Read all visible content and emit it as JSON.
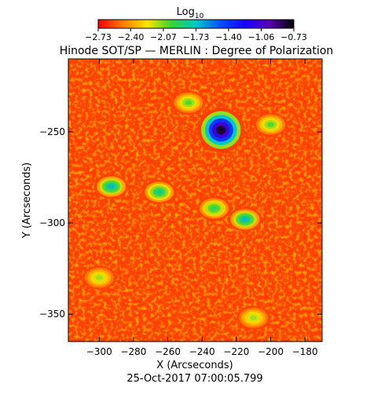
{
  "chart_data": {
    "type": "heatmap",
    "title": "Hinode SOT/SP — MERLIN : Degree of Polarization",
    "xlabel": "X (Arcseconds)",
    "ylabel": "Y (Arcseconds)",
    "xlim": [
      -318,
      -170
    ],
    "ylim": [
      -365,
      -210
    ],
    "x_ticks": [
      -300,
      -280,
      -260,
      -240,
      -220,
      -200,
      -180
    ],
    "y_ticks": [
      -250,
      -300,
      -350
    ],
    "colorbar": {
      "label": "Log",
      "label_subscript": "10",
      "range": [
        -2.73,
        -0.73
      ],
      "ticks": [
        "−2.73",
        "−2.40",
        "−2.07",
        "−1.73",
        "−1.40",
        "−1.06",
        "−0.73"
      ],
      "stops": [
        "#ff0000",
        "#ff7a00",
        "#ffe600",
        "#33d633",
        "#00c8c8",
        "#0050ff",
        "#1a00ff",
        "#5a00b4",
        "#000000"
      ]
    },
    "background_level": -2.6,
    "features": [
      {
        "kind": "sunspot",
        "x": -229,
        "y": -249,
        "peak_value": -0.8
      },
      {
        "kind": "plage",
        "x": -293,
        "y": -280,
        "peak_value": -1.7
      },
      {
        "kind": "plage",
        "x": -265,
        "y": -283,
        "peak_value": -1.8
      },
      {
        "kind": "plage",
        "x": -233,
        "y": -292,
        "peak_value": -1.9
      },
      {
        "kind": "plage",
        "x": -215,
        "y": -298,
        "peak_value": -1.7
      },
      {
        "kind": "plage",
        "x": -248,
        "y": -234,
        "peak_value": -2.0
      },
      {
        "kind": "plage",
        "x": -200,
        "y": -246,
        "peak_value": -2.0
      },
      {
        "kind": "plage",
        "x": -300,
        "y": -330,
        "peak_value": -2.1
      },
      {
        "kind": "plage",
        "x": -210,
        "y": -352,
        "peak_value": -2.1
      }
    ],
    "date": "25-Oct-2017 07:00:05.799",
    "grid": false,
    "colorbar_position": "top"
  }
}
